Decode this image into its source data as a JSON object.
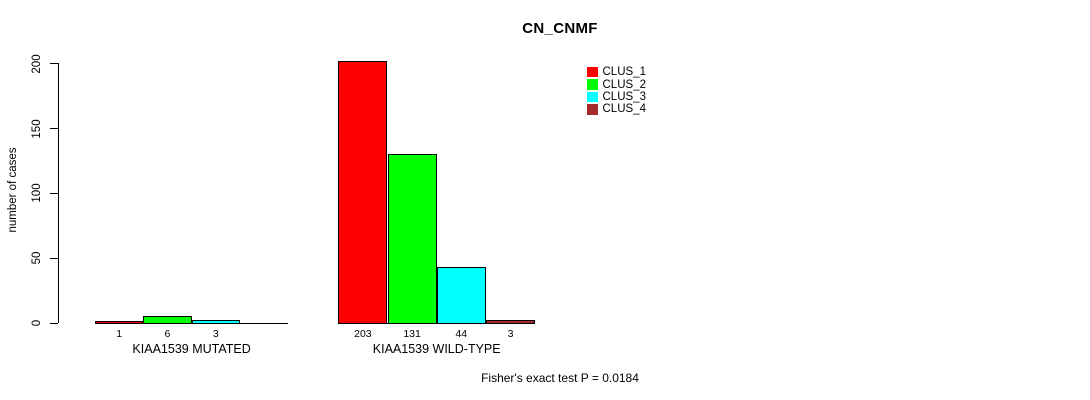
{
  "title": "CN_CNMF",
  "footer": "Fisher's exact test P = 0.0184",
  "y_axis": {
    "label": "number of cases"
  },
  "legend": {
    "items": [
      {
        "label": "CLUS_1",
        "color": "#ff0000"
      },
      {
        "label": "CLUS_2",
        "color": "#00ff00"
      },
      {
        "label": "CLUS_3",
        "color": "#00ffff"
      },
      {
        "label": "CLUS_4",
        "color": "#a52a2a"
      }
    ]
  },
  "chart_data": {
    "type": "bar",
    "title": "CN_CNMF",
    "xlabel": "",
    "ylabel": "number of cases",
    "ylim": [
      0,
      200
    ],
    "yticks": [
      0,
      50,
      100,
      150,
      200
    ],
    "grid": false,
    "legend_position": "top-right",
    "categories": [
      "KIAA1539 MUTATED",
      "KIAA1539 WILD-TYPE"
    ],
    "series": [
      {
        "name": "CLUS_1",
        "color": "#ff0000",
        "values": [
          1,
          203
        ]
      },
      {
        "name": "CLUS_2",
        "color": "#00ff00",
        "values": [
          6,
          131
        ]
      },
      {
        "name": "CLUS_3",
        "color": "#00ffff",
        "values": [
          3,
          44
        ]
      },
      {
        "name": "CLUS_4",
        "color": "#a52a2a",
        "values": [
          0,
          3
        ]
      }
    ],
    "bar_value_labels": [
      [
        "1",
        "6",
        "3",
        ""
      ],
      [
        "203",
        "131",
        "44",
        "3"
      ]
    ],
    "annotation": "Fisher's exact test P = 0.0184"
  }
}
